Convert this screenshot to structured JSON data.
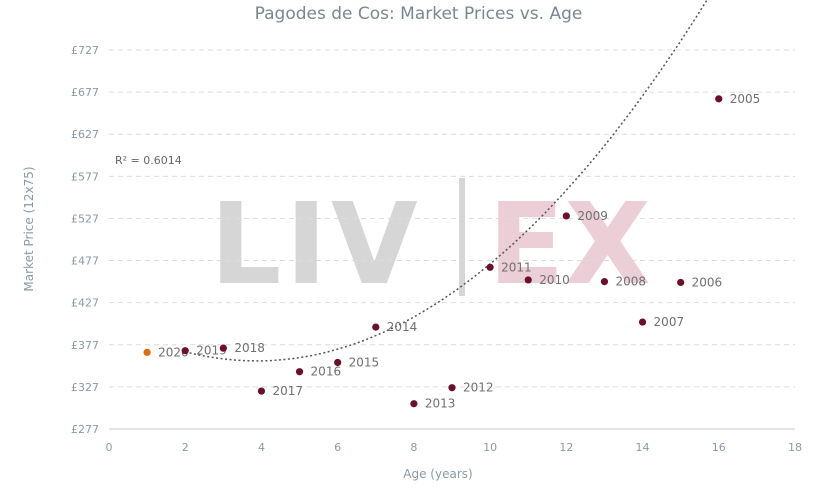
{
  "chart_data": {
    "type": "scatter",
    "title": "Pagodes de Cos: Market Prices vs. Age",
    "xlabel": "Age (years)",
    "ylabel": "Market Price (12x75)",
    "xlim": [
      0,
      18
    ],
    "ylim": [
      277,
      727
    ],
    "x_ticks": [
      "0",
      "2",
      "4",
      "6",
      "8",
      "10",
      "12",
      "14",
      "16",
      "18"
    ],
    "y_ticks": [
      "£277",
      "£327",
      "£377",
      "£427",
      "£477",
      "£527",
      "£577",
      "£627",
      "£677",
      "£727"
    ],
    "grid": "horizontal dashed",
    "r_squared_label": "R² = 0.6014",
    "watermark": "LIV-EX",
    "trendline": {
      "type": "polynomial",
      "x_range": [
        2,
        16
      ],
      "coefficients": [
        404,
        -23.8,
        3.07
      ]
    },
    "points": [
      {
        "label": "2020",
        "x": 1,
        "y": 368,
        "color": "#e36c0a"
      },
      {
        "label": "2019",
        "x": 2,
        "y": 370,
        "color": "#6b0f2a"
      },
      {
        "label": "2018",
        "x": 3,
        "y": 373,
        "color": "#6b0f2a"
      },
      {
        "label": "2017",
        "x": 4,
        "y": 322,
        "color": "#6b0f2a"
      },
      {
        "label": "2016",
        "x": 5,
        "y": 345,
        "color": "#6b0f2a"
      },
      {
        "label": "2015",
        "x": 6,
        "y": 356,
        "color": "#6b0f2a"
      },
      {
        "label": "2014",
        "x": 7,
        "y": 398,
        "color": "#6b0f2a"
      },
      {
        "label": "2013",
        "x": 8,
        "y": 307,
        "color": "#6b0f2a"
      },
      {
        "label": "2012",
        "x": 9,
        "y": 326,
        "color": "#6b0f2a"
      },
      {
        "label": "2011",
        "x": 10,
        "y": 469,
        "color": "#6b0f2a"
      },
      {
        "label": "2010",
        "x": 11,
        "y": 454,
        "color": "#6b0f2a"
      },
      {
        "label": "2009",
        "x": 12,
        "y": 530,
        "color": "#6b0f2a"
      },
      {
        "label": "2008",
        "x": 13,
        "y": 452,
        "color": "#6b0f2a"
      },
      {
        "label": "2007",
        "x": 14,
        "y": 404,
        "color": "#6b0f2a"
      },
      {
        "label": "2006",
        "x": 15,
        "y": 451,
        "color": "#6b0f2a"
      },
      {
        "label": "2005",
        "x": 16,
        "y": 669,
        "color": "#6b0f2a"
      }
    ]
  }
}
